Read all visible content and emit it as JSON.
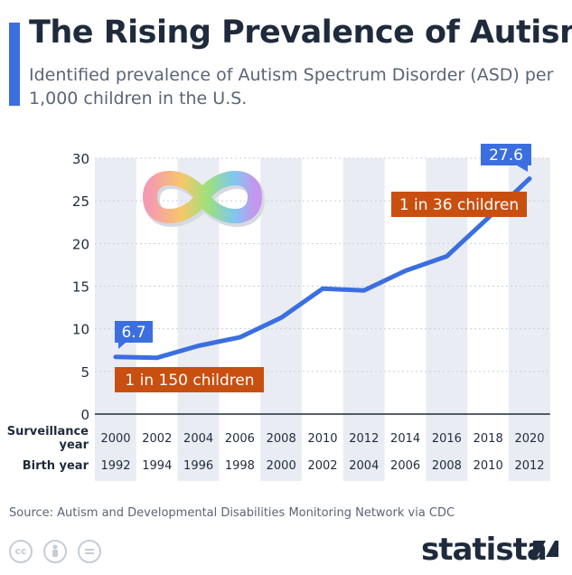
{
  "header": {
    "title": "The Rising Prevalence of Autism",
    "subtitle": "Identified prevalence of Autism Spectrum Disorder (ASD) per 1,000 children in the U.S."
  },
  "chart_data": {
    "type": "line",
    "x": [
      "2000",
      "2002",
      "2004",
      "2006",
      "2008",
      "2010",
      "2012",
      "2014",
      "2016",
      "2018",
      "2020"
    ],
    "birth_years": [
      "1992",
      "1994",
      "1996",
      "1998",
      "2000",
      "2002",
      "2004",
      "2006",
      "2008",
      "2010",
      "2012"
    ],
    "row_labels": {
      "surveillance": [
        "Surveillance",
        "year"
      ],
      "birth": "Birth year"
    },
    "series": [
      {
        "values": [
          6.7,
          6.6,
          8.0,
          9.0,
          11.3,
          14.7,
          14.5,
          16.8,
          18.5,
          23.0,
          27.6
        ]
      }
    ],
    "ylim": [
      0,
      30
    ],
    "yticks": [
      0,
      5,
      10,
      15,
      20,
      25,
      30
    ],
    "grid": true,
    "annotations": {
      "start_value": "6.7",
      "end_value": "27.6",
      "start_note": "1 in 150 children",
      "end_note": "1 in 36 children"
    },
    "colors": {
      "line": "#3b6fe0",
      "note": "#c84f10",
      "band": "#e9ecf3"
    }
  },
  "footer": {
    "source": "Source: Autism and Developmental Disabilities Monitoring Network via CDC",
    "license_icons": [
      "creative-commons-icon",
      "attribution-icon",
      "no-derivatives-icon"
    ],
    "brand": "statista"
  }
}
